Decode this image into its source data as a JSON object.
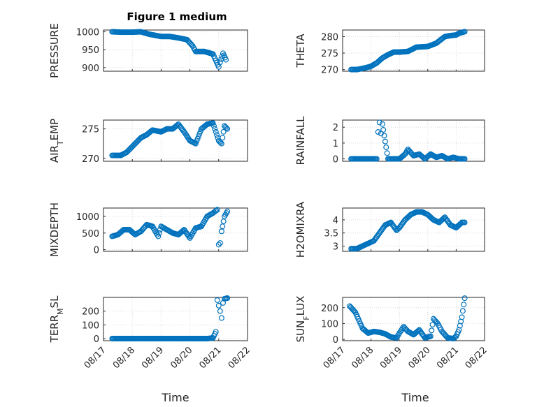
{
  "title": "Figure 1 medium",
  "xlabel": "Time",
  "x_ticks": [
    "08/17",
    "08/18",
    "08/19",
    "08/20",
    "08/21",
    "08/22"
  ],
  "chart_data": [
    {
      "type": "scatter",
      "ylabel": "PRESSURE",
      "ylabel_sub": "",
      "ylabel_tail": "",
      "ylim": [
        890,
        1005
      ],
      "yticks": [
        900,
        950,
        1000
      ],
      "x": [
        17.3,
        17.6,
        18.0,
        18.3,
        18.6,
        19.0,
        19.3,
        19.6,
        19.9,
        20.1,
        20.2,
        20.5,
        20.8,
        21.0,
        21.05,
        21.15,
        21.25
      ],
      "y": [
        1000,
        999,
        999,
        1000,
        993,
        987,
        987,
        983,
        978,
        960,
        945,
        945,
        938,
        902,
        915,
        940,
        922
      ]
    },
    {
      "type": "scatter",
      "ylabel": "THETA",
      "ylabel_sub": "",
      "ylabel_tail": "",
      "ylim": [
        269.5,
        282
      ],
      "yticks": [
        270,
        275,
        280
      ],
      "x": [
        17.3,
        17.5,
        17.8,
        18.0,
        18.2,
        18.4,
        18.6,
        18.8,
        19.0,
        19.3,
        19.6,
        20.0,
        20.3,
        20.6,
        20.8,
        21.0,
        21.1,
        21.3
      ],
      "y": [
        270,
        270,
        270.5,
        271,
        272,
        273.5,
        274.5,
        275.3,
        275.3,
        275.5,
        276.8,
        277,
        278,
        280,
        280.3,
        280.5,
        281,
        281.5
      ]
    },
    {
      "type": "scatter",
      "ylabel": "AIR",
      "ylabel_sub": "T",
      "ylabel_tail": "EMP",
      "ylim": [
        269.5,
        276.5
      ],
      "yticks": [
        270,
        275
      ],
      "x": [
        17.3,
        17.6,
        17.8,
        18.1,
        18.3,
        18.5,
        18.7,
        19.0,
        19.2,
        19.4,
        19.6,
        19.8,
        20.0,
        20.2,
        20.4,
        20.6,
        20.8,
        21.0,
        21.1,
        21.2,
        21.3
      ],
      "y": [
        270.5,
        270.5,
        271,
        272.5,
        273.5,
        274,
        274.8,
        274.5,
        275,
        275,
        275.8,
        274.5,
        273,
        272.5,
        275,
        275.8,
        276,
        273,
        272.5,
        275.5,
        275
      ]
    },
    {
      "type": "scatter",
      "ylabel": "RAINFALL",
      "ylabel_sub": "",
      "ylabel_tail": "",
      "ylim": [
        -0.15,
        2.45
      ],
      "yticks": [
        0,
        1,
        2
      ],
      "x": [
        17.3,
        17.6,
        17.9,
        18.1,
        18.2,
        18.25,
        18.3,
        18.35,
        18.4,
        18.6,
        18.8,
        19.0,
        19.2,
        19.3,
        19.5,
        19.7,
        19.9,
        20.1,
        20.3,
        20.5,
        20.7,
        20.9,
        21.1,
        21.3
      ],
      "y": [
        0,
        0,
        0,
        0,
        0,
        1.7,
        2.3,
        1.6,
        2.2,
        0,
        0,
        0,
        0.3,
        0.6,
        0.2,
        0.3,
        0,
        0.3,
        0.1,
        0.2,
        0,
        0.1,
        0,
        0
      ]
    },
    {
      "type": "scatter",
      "ylabel": "MIXDEPTH",
      "ylabel_sub": "",
      "ylabel_tail": "",
      "ylim": [
        -50,
        1250
      ],
      "yticks": [
        0,
        500,
        1000
      ],
      "x": [
        17.3,
        17.5,
        17.7,
        17.9,
        18.1,
        18.3,
        18.5,
        18.7,
        18.9,
        19.0,
        19.2,
        19.4,
        19.6,
        19.8,
        20.0,
        20.2,
        20.4,
        20.6,
        20.8,
        20.95,
        21.0,
        21.05,
        21.1,
        21.2,
        21.3
      ],
      "y": [
        400,
        450,
        600,
        600,
        450,
        550,
        750,
        700,
        400,
        700,
        600,
        500,
        450,
        600,
        350,
        650,
        700,
        1000,
        1100,
        1200,
        150,
        200,
        550,
        1000,
        1150
      ]
    },
    {
      "type": "scatter",
      "ylabel": "H2OMIXRA",
      "ylabel_sub": "",
      "ylabel_tail": "",
      "ylim": [
        2.8,
        4.45
      ],
      "yticks": [
        3,
        3.5,
        4
      ],
      "x": [
        17.3,
        17.5,
        17.7,
        17.9,
        18.1,
        18.3,
        18.5,
        18.7,
        18.9,
        19.0,
        19.2,
        19.4,
        19.6,
        19.8,
        20.0,
        20.2,
        20.4,
        20.6,
        20.8,
        21.0,
        21.2,
        21.3
      ],
      "y": [
        2.9,
        2.9,
        3.0,
        3.1,
        3.2,
        3.5,
        3.8,
        3.9,
        3.6,
        3.7,
        4.0,
        4.2,
        4.3,
        4.3,
        4.2,
        4.0,
        3.9,
        4.1,
        3.8,
        3.7,
        3.9,
        3.9
      ]
    },
    {
      "type": "scatter",
      "ylabel": "TERR",
      "ylabel_sub": "M",
      "ylabel_tail": "SL",
      "ylim": [
        -15,
        300
      ],
      "yticks": [
        0,
        100,
        200
      ],
      "x": [
        17.3,
        17.6,
        17.9,
        18.2,
        18.5,
        18.8,
        19.1,
        19.4,
        19.7,
        20.0,
        20.3,
        20.6,
        20.8,
        20.9,
        20.95,
        21.0,
        21.05,
        21.1,
        21.15,
        21.2,
        21.3
      ],
      "y": [
        0,
        0,
        0,
        0,
        0,
        0,
        0,
        0,
        0,
        0,
        0,
        0,
        5,
        50,
        280,
        240,
        200,
        150,
        260,
        290,
        295
      ]
    },
    {
      "type": "scatter",
      "ylabel": "SUN",
      "ylabel_sub": "F",
      "ylabel_tail": "LUX",
      "ylim": [
        -8,
        265
      ],
      "yticks": [
        0,
        100,
        200
      ],
      "x": [
        17.25,
        17.35,
        17.45,
        17.55,
        17.7,
        17.9,
        18.1,
        18.3,
        18.5,
        18.7,
        18.9,
        19.0,
        19.15,
        19.3,
        19.5,
        19.7,
        19.9,
        20.1,
        20.2,
        20.35,
        20.5,
        20.7,
        20.9,
        21.0,
        21.1,
        21.2,
        21.3
      ],
      "y": [
        210,
        190,
        170,
        130,
        70,
        40,
        50,
        45,
        35,
        15,
        10,
        40,
        80,
        50,
        30,
        60,
        10,
        20,
        130,
        100,
        50,
        10,
        5,
        20,
        60,
        140,
        260
      ]
    }
  ]
}
